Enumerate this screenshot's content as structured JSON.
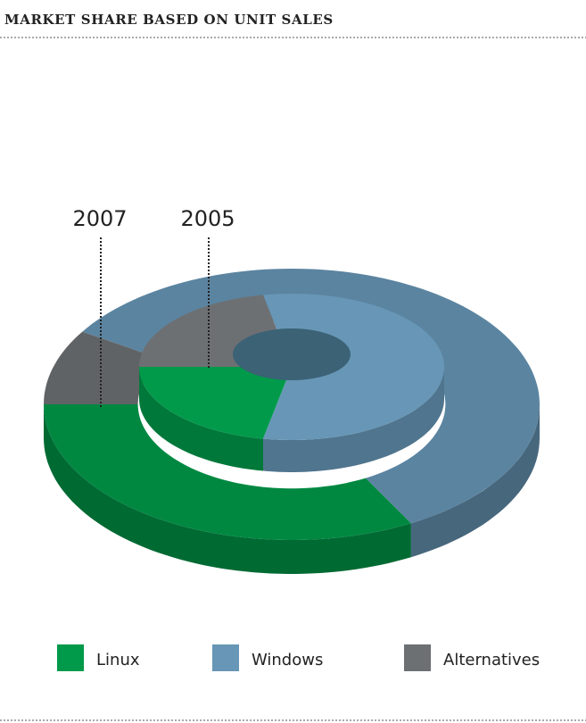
{
  "chart_data": {
    "type": "nested-donut-3d",
    "title": "MARKET SHARE BASED ON UNIT SALES",
    "categories": [
      "Linux",
      "Windows",
      "Alternatives"
    ],
    "colors": [
      "#009a4a",
      "#6796b6",
      "#6d7073"
    ],
    "series": [
      {
        "name": "2007",
        "values": [
          33,
          58,
          9
        ]
      },
      {
        "name": "2005",
        "values": [
          22,
          56,
          22
        ]
      }
    ]
  }
}
